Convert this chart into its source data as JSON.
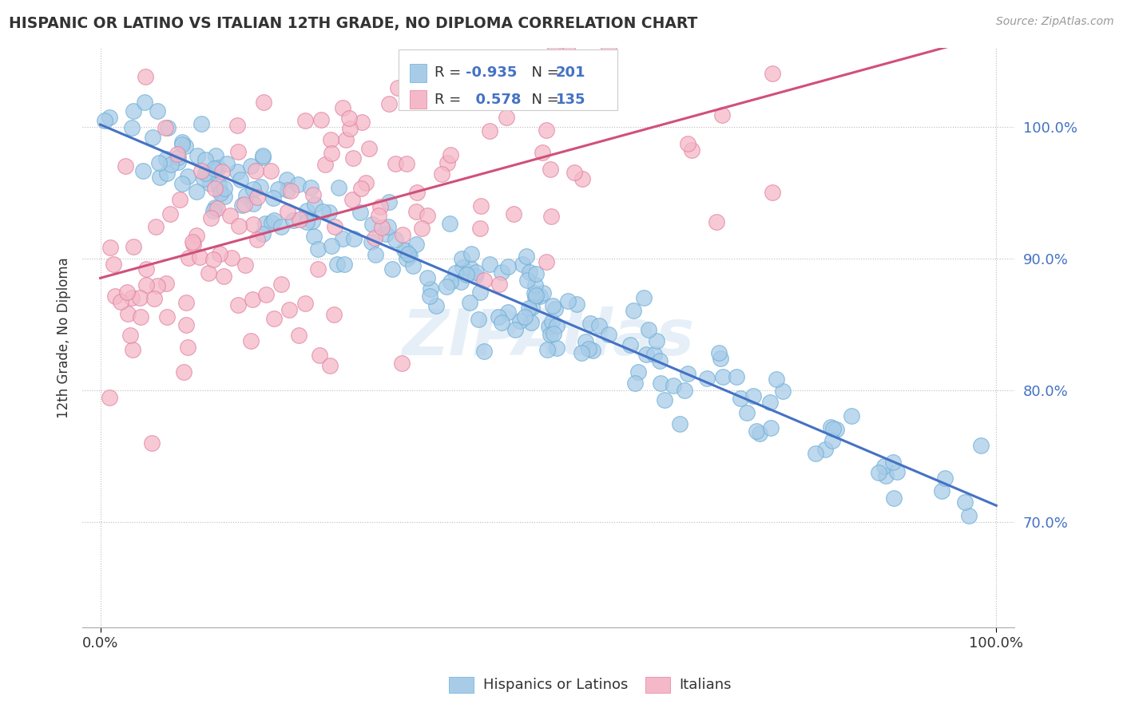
{
  "title": "HISPANIC OR LATINO VS ITALIAN 12TH GRADE, NO DIPLOMA CORRELATION CHART",
  "source": "Source: ZipAtlas.com",
  "ylabel": "12th Grade, No Diploma",
  "legend_label1": "Hispanics or Latinos",
  "legend_label2": "Italians",
  "r_blue": -0.935,
  "n_blue": 201,
  "r_pink": 0.578,
  "n_pink": 135,
  "blue_color": "#a8cce8",
  "pink_color": "#f5b8c8",
  "blue_line_color": "#4472c4",
  "pink_line_color": "#d0507a",
  "blue_edge_color": "#6aaed6",
  "pink_edge_color": "#e080a0",
  "watermark": "ZIPAtlas",
  "background_color": "#ffffff",
  "ytick_vals": [
    0.7,
    0.8,
    0.9,
    1.0
  ],
  "ytick_labels": [
    "70.0%",
    "80.0%",
    "90.0%",
    "100.0%"
  ],
  "xlim": [
    -0.02,
    1.02
  ],
  "ylim": [
    0.62,
    1.06
  ]
}
